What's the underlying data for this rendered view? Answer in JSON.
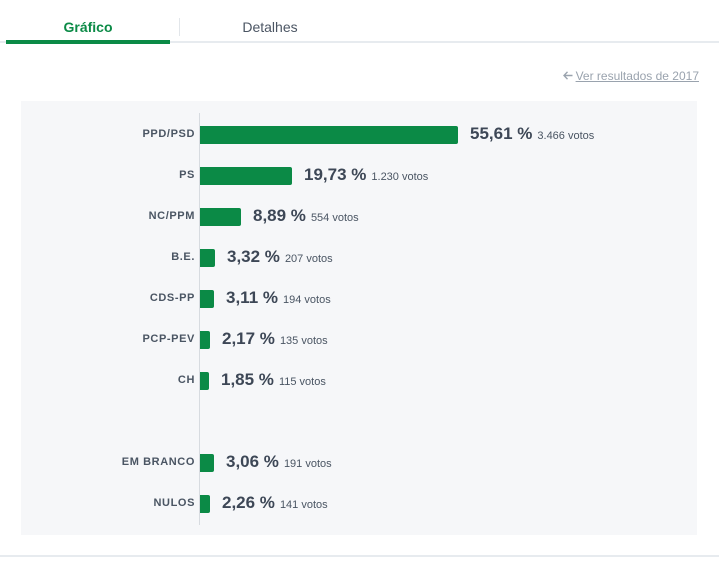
{
  "tabs": {
    "chart_label": "Gráfico",
    "details_label": "Detalhes"
  },
  "previous_results": {
    "icon": "arrow-left-icon",
    "label": "Ver resultados de 2017"
  },
  "colors": {
    "accent": "#0b8a46",
    "panel_bg": "#f6f7f9",
    "text": "#3d4756",
    "muted": "#9aa3ae"
  },
  "chart_data": {
    "type": "bar",
    "orientation": "horizontal",
    "xlim": [
      0,
      55.61
    ],
    "votes_suffix": "votos",
    "bars": [
      {
        "party": "PPD/PSD",
        "percent": 55.61,
        "percent_label": "55,61 %",
        "votes": "3.466 votos"
      },
      {
        "party": "PS",
        "percent": 19.73,
        "percent_label": "19,73 %",
        "votes": "1.230 votos"
      },
      {
        "party": "NC/PPM",
        "percent": 8.89,
        "percent_label": "8,89 %",
        "votes": "554 votos"
      },
      {
        "party": "B.E.",
        "percent": 3.32,
        "percent_label": "3,32 %",
        "votes": "207 votos"
      },
      {
        "party": "CDS-PP",
        "percent": 3.11,
        "percent_label": "3,11 %",
        "votes": "194 votos"
      },
      {
        "party": "PCP-PEV",
        "percent": 2.17,
        "percent_label": "2,17 %",
        "votes": "135 votos"
      },
      {
        "party": "CH",
        "percent": 1.85,
        "percent_label": "1,85 %",
        "votes": "115 votos"
      },
      {
        "party": "EM BRANCO",
        "percent": 3.06,
        "percent_label": "3,06 %",
        "votes": "191 votos"
      },
      {
        "party": "NULOS",
        "percent": 2.26,
        "percent_label": "2,26 %",
        "votes": "141 votos"
      }
    ]
  }
}
